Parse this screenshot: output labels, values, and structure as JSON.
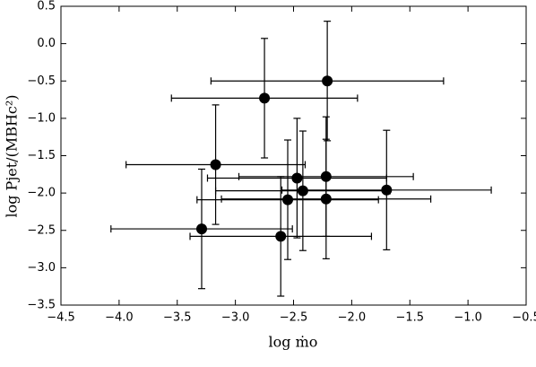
{
  "chart_data": {
    "type": "scatter",
    "xlabel": "log ṁo",
    "ylabel": "log Pjet/(MBHc²)",
    "x": [
      -2.21,
      -2.75,
      -3.17,
      -2.47,
      -2.22,
      -2.42,
      -1.7,
      -2.55,
      -2.22,
      -3.29,
      -2.61
    ],
    "series": [
      {
        "color": "#000000",
        "values": [
          -0.5,
          -0.73,
          -1.62,
          -1.8,
          -1.78,
          -1.97,
          -1.96,
          -2.09,
          -2.08,
          -2.48,
          -2.58
        ],
        "error_x": [
          1.0,
          0.8,
          0.77,
          0.77,
          0.75,
          0.75,
          0.9,
          0.78,
          0.9,
          0.78,
          0.78
        ],
        "error_y": [
          0.8,
          0.8,
          0.8,
          0.8,
          0.8,
          0.8,
          0.8,
          0.8,
          0.8,
          0.8,
          0.8
        ]
      }
    ],
    "xlim": [
      -4.5,
      -0.5
    ],
    "ylim": [
      -3.5,
      0.5
    ],
    "xticks": [
      {
        "value": -4.5,
        "label": "−4.5"
      },
      {
        "value": -4.0,
        "label": "−4.0"
      },
      {
        "value": -3.5,
        "label": "−3.5"
      },
      {
        "value": -3.0,
        "label": "−3.0"
      },
      {
        "value": -2.5,
        "label": "−2.5"
      },
      {
        "value": -2.0,
        "label": "−2.0"
      },
      {
        "value": -1.5,
        "label": "−1.5"
      },
      {
        "value": -1.0,
        "label": "−1.0"
      },
      {
        "value": -0.5,
        "label": "−0.5"
      }
    ],
    "yticks": [
      {
        "value": 0.5,
        "label": "0.5"
      },
      {
        "value": 0.0,
        "label": "0.0"
      },
      {
        "value": -0.5,
        "label": "−0.5"
      },
      {
        "value": -1.0,
        "label": "−1.0"
      },
      {
        "value": -1.5,
        "label": "−1.5"
      },
      {
        "value": -2.0,
        "label": "−2.0"
      },
      {
        "value": -2.5,
        "label": "−2.5"
      },
      {
        "value": -3.0,
        "label": "−3.0"
      },
      {
        "value": -3.5,
        "label": "−3.5"
      }
    ]
  }
}
